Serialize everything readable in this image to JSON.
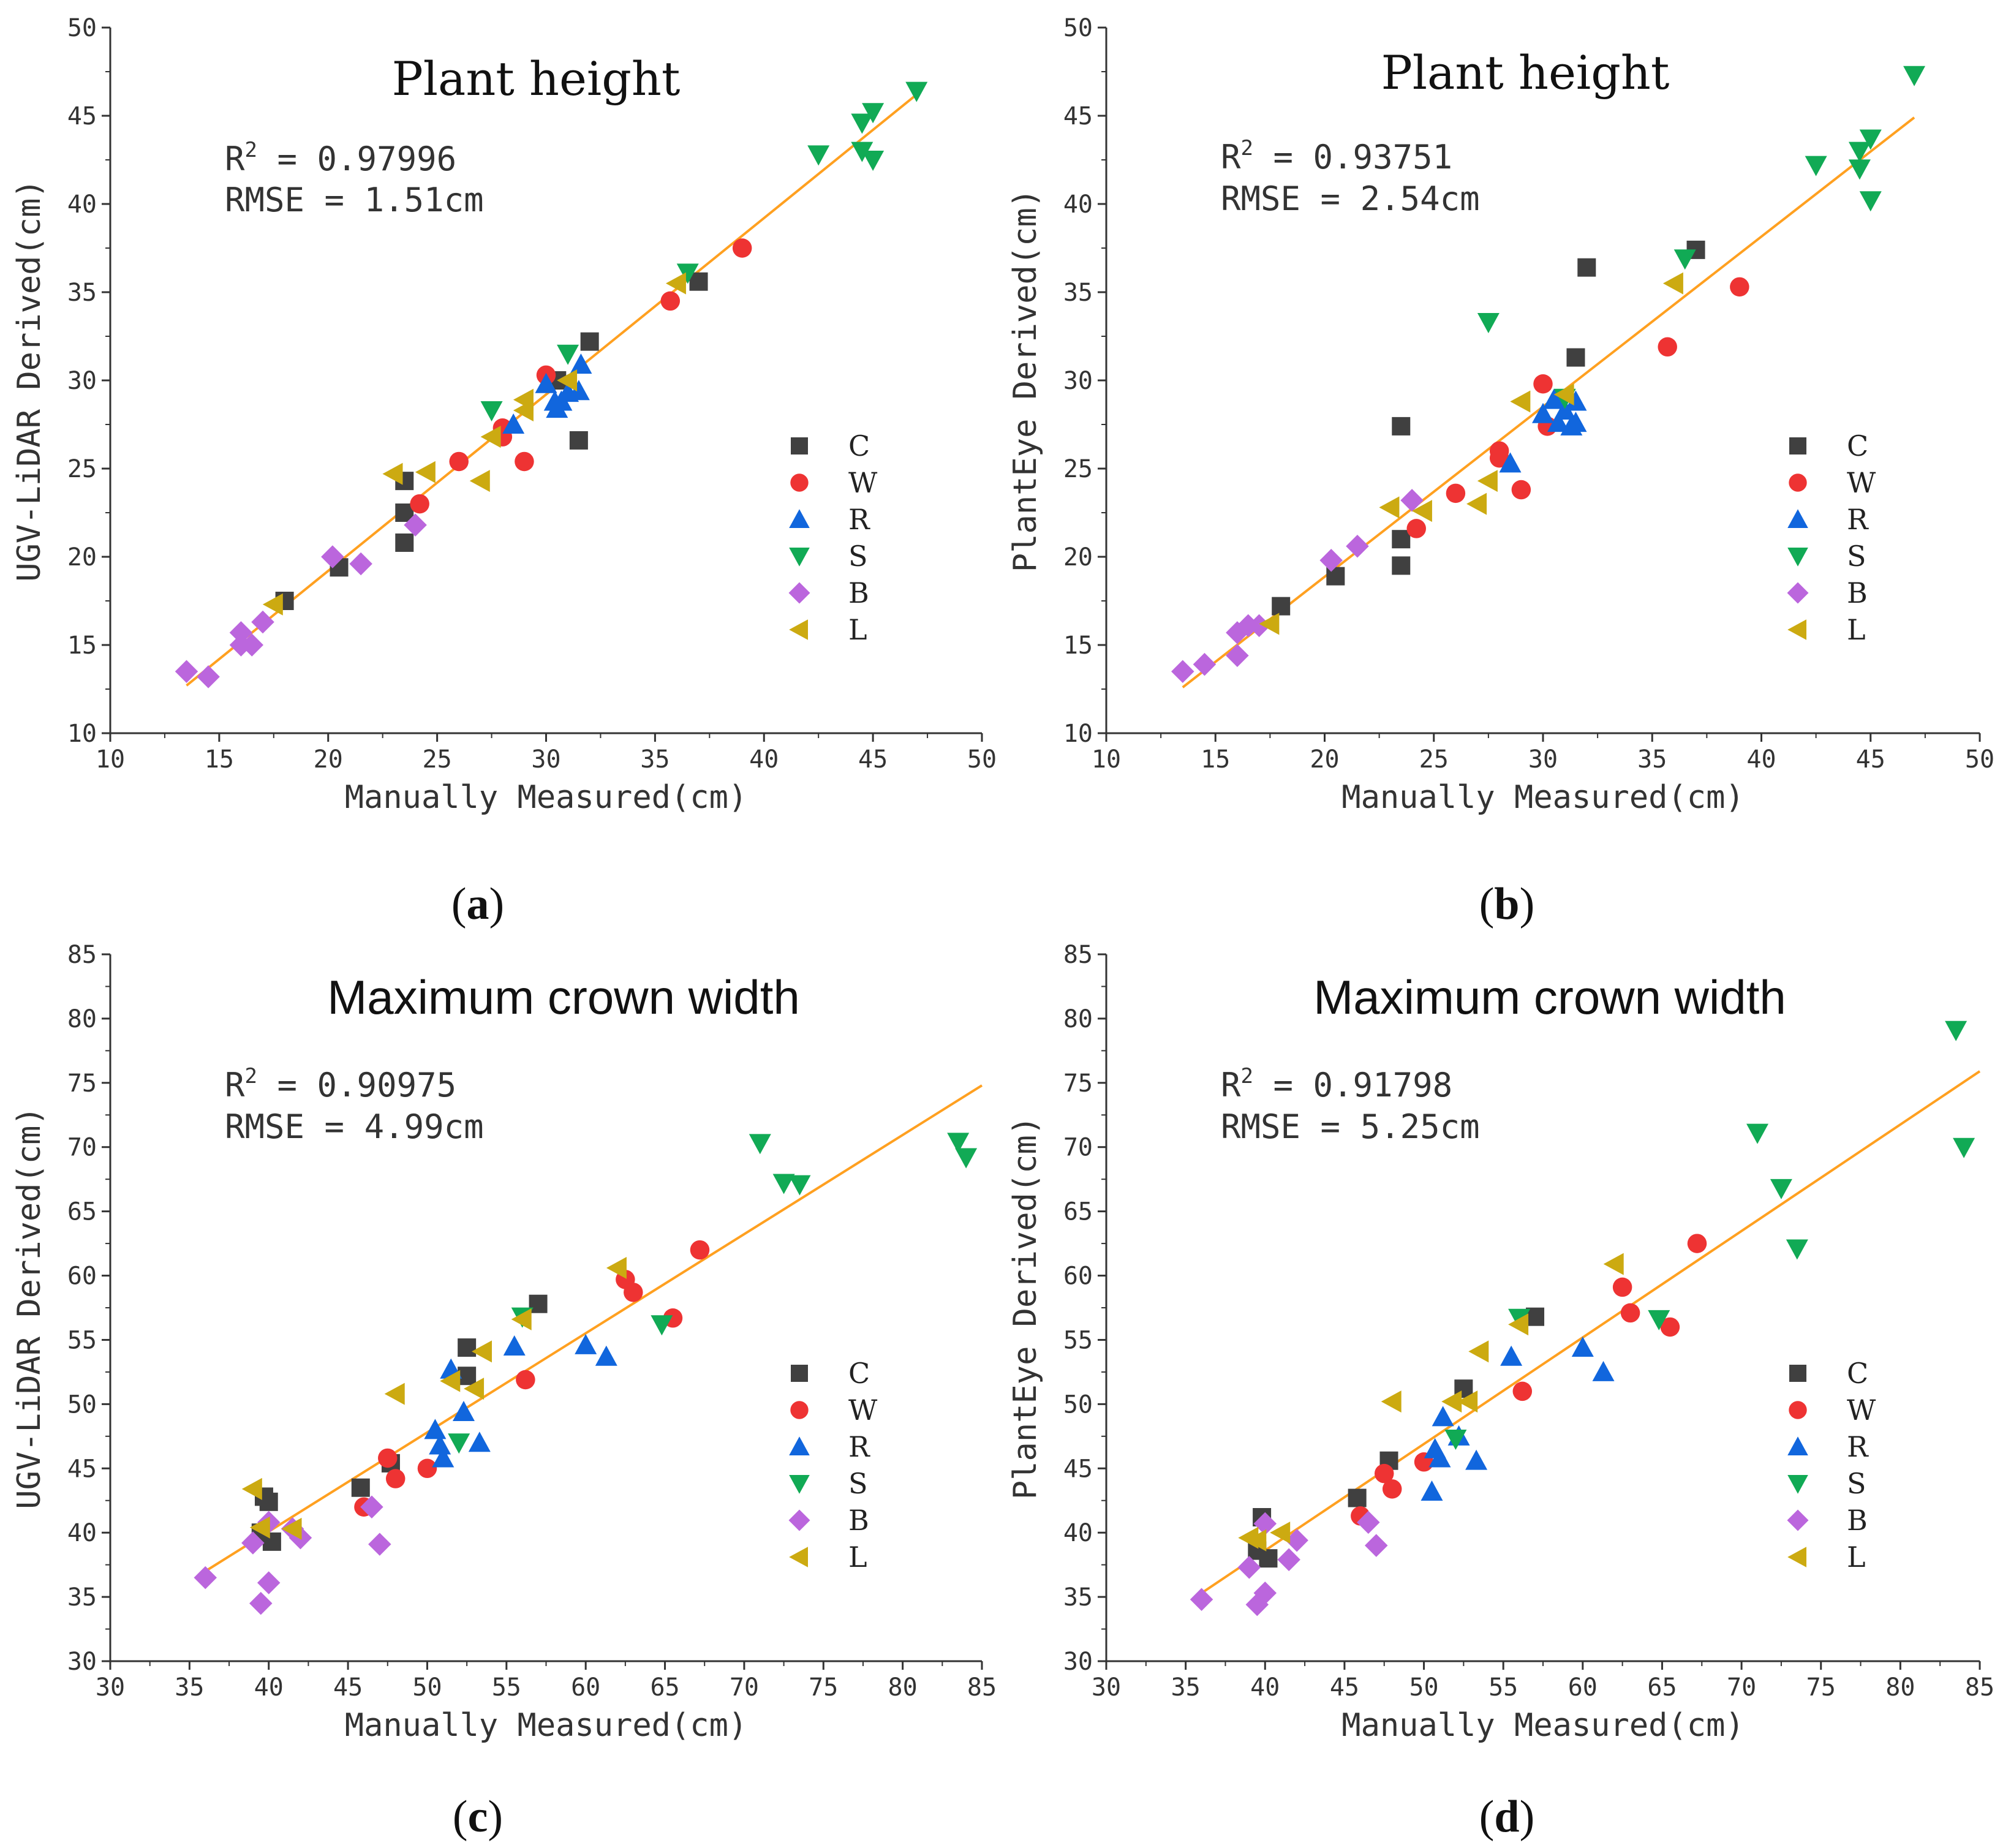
{
  "colors": {
    "C": "#404040",
    "W": "#ee3333",
    "R": "#1166dd",
    "S": "#11aa55",
    "B": "#bb66dd",
    "L": "#ccaa11",
    "fit": "#ffa020",
    "axis": "#333333"
  },
  "chart_data": [
    {
      "type": "scatter",
      "panel": "(a)",
      "title": "Plant height",
      "xlabel": "Manually Measured(cm)",
      "ylabel": "UGV-LiDAR Derived(cm)",
      "xlim": [
        10,
        50
      ],
      "ylim": [
        10,
        50
      ],
      "ticks": [
        10,
        15,
        20,
        25,
        30,
        35,
        40,
        45,
        50
      ],
      "r2_label": "R",
      "r2_value": " = 0.97996",
      "rmse": "RMSE = 1.51cm",
      "fit_line": [
        [
          13.5,
          12.7
        ],
        [
          47.0,
          46.2
        ]
      ],
      "series": [
        {
          "name": "C",
          "marker": "square",
          "points": [
            [
              18,
              17.5
            ],
            [
              20.5,
              19.4
            ],
            [
              23.5,
              24.3
            ],
            [
              23.5,
              22.5
            ],
            [
              23.5,
              20.8
            ],
            [
              30.5,
              30.0
            ],
            [
              31.5,
              26.6
            ],
            [
              32,
              32.2
            ],
            [
              37,
              35.6
            ]
          ]
        },
        {
          "name": "W",
          "marker": "circle",
          "points": [
            [
              24.2,
              23.0
            ],
            [
              26,
              25.4
            ],
            [
              28,
              27.3
            ],
            [
              28,
              26.8
            ],
            [
              29,
              25.4
            ],
            [
              30,
              30.3
            ],
            [
              35.7,
              34.5
            ],
            [
              39,
              37.5
            ]
          ]
        },
        {
          "name": "R",
          "marker": "triangle-up",
          "points": [
            [
              28.5,
              27.5
            ],
            [
              30,
              29.8
            ],
            [
              30.5,
              28.4
            ],
            [
              30.7,
              28.8
            ],
            [
              31.0,
              29.3
            ],
            [
              31.5,
              29.4
            ],
            [
              31.6,
              30.9
            ],
            [
              30.4,
              28.8
            ]
          ]
        },
        {
          "name": "S",
          "marker": "triangle-down",
          "points": [
            [
              27.5,
              28.3
            ],
            [
              31,
              31.5
            ],
            [
              36.5,
              36.1
            ],
            [
              42.5,
              42.8
            ],
            [
              44.5,
              44.6
            ],
            [
              44.5,
              43.0
            ],
            [
              45,
              45.2
            ],
            [
              45,
              42.5
            ],
            [
              47,
              46.4
            ]
          ]
        },
        {
          "name": "B",
          "marker": "diamond",
          "points": [
            [
              13.5,
              13.5
            ],
            [
              14.5,
              13.2
            ],
            [
              16,
              15.7
            ],
            [
              16,
              15.0
            ],
            [
              16.5,
              15.0
            ],
            [
              17,
              16.3
            ],
            [
              20.2,
              20.0
            ],
            [
              21.5,
              19.6
            ],
            [
              24,
              21.8
            ]
          ]
        },
        {
          "name": "L",
          "marker": "triangle-left",
          "points": [
            [
              17.5,
              17.3
            ],
            [
              23,
              24.7
            ],
            [
              24.5,
              24.8
            ],
            [
              27,
              24.3
            ],
            [
              27.5,
              26.8
            ],
            [
              29,
              28.9
            ],
            [
              29,
              28.3
            ],
            [
              31,
              30.0
            ],
            [
              36,
              35.5
            ]
          ]
        }
      ]
    },
    {
      "type": "scatter",
      "panel": "(b)",
      "title": "Plant height",
      "xlabel": "Manually Measured(cm)",
      "ylabel": "PlantEye Derived(cm)",
      "xlim": [
        10,
        50
      ],
      "ylim": [
        10,
        50
      ],
      "ticks": [
        10,
        15,
        20,
        25,
        30,
        35,
        40,
        45,
        50
      ],
      "r2_label": "R",
      "r2_value": " = 0.93751",
      "rmse": "RMSE = 2.54cm",
      "fit_line": [
        [
          13.5,
          12.6
        ],
        [
          47.0,
          44.9
        ]
      ],
      "series": [
        {
          "name": "C",
          "marker": "square",
          "points": [
            [
              18,
              17.2
            ],
            [
              20.5,
              18.9
            ],
            [
              23.5,
              27.4
            ],
            [
              23.5,
              21.0
            ],
            [
              23.5,
              19.5
            ],
            [
              31.5,
              31.3
            ],
            [
              32,
              36.4
            ],
            [
              37,
              37.4
            ]
          ]
        },
        {
          "name": "W",
          "marker": "circle",
          "points": [
            [
              24.2,
              21.6
            ],
            [
              26,
              23.6
            ],
            [
              28,
              26.0
            ],
            [
              28,
              25.6
            ],
            [
              29,
              23.8
            ],
            [
              30,
              29.8
            ],
            [
              30.2,
              27.4
            ],
            [
              35.7,
              31.9
            ],
            [
              39,
              35.3
            ]
          ]
        },
        {
          "name": "R",
          "marker": "triangle-up",
          "points": [
            [
              28.5,
              25.3
            ],
            [
              30,
              28.1
            ],
            [
              30.5,
              28.9
            ],
            [
              30.7,
              27.6
            ],
            [
              31.0,
              28.3
            ],
            [
              31.3,
              27.4
            ],
            [
              31.5,
              28.8
            ],
            [
              31.5,
              27.6
            ]
          ]
        },
        {
          "name": "S",
          "marker": "triangle-down",
          "points": [
            [
              27.5,
              33.3
            ],
            [
              31,
              29.0
            ],
            [
              36.5,
              36.9
            ],
            [
              42.5,
              42.2
            ],
            [
              44.5,
              43.0
            ],
            [
              44.5,
              42.0
            ],
            [
              45,
              43.7
            ],
            [
              45,
              40.2
            ],
            [
              47,
              47.3
            ]
          ]
        },
        {
          "name": "B",
          "marker": "diamond",
          "points": [
            [
              13.5,
              13.5
            ],
            [
              14.5,
              13.9
            ],
            [
              16,
              15.7
            ],
            [
              16,
              14.4
            ],
            [
              16.5,
              16.1
            ],
            [
              17,
              16.1
            ],
            [
              20.3,
              19.8
            ],
            [
              21.5,
              20.6
            ],
            [
              24,
              23.2
            ]
          ]
        },
        {
          "name": "L",
          "marker": "triangle-left",
          "points": [
            [
              17.5,
              16.2
            ],
            [
              23,
              22.8
            ],
            [
              24.5,
              22.6
            ],
            [
              27,
              23.0
            ],
            [
              27.5,
              24.3
            ],
            [
              29,
              28.8
            ],
            [
              31,
              29.2
            ],
            [
              36,
              35.5
            ]
          ]
        }
      ]
    },
    {
      "type": "scatter",
      "panel": "(c)",
      "title": "Maximum crown width",
      "xlabel": "Manually Measured(cm)",
      "ylabel": "UGV-LiDAR Derived(cm)",
      "xlim": [
        30,
        85
      ],
      "ylim": [
        30,
        85
      ],
      "ticks": [
        30,
        35,
        40,
        45,
        50,
        55,
        60,
        65,
        70,
        75,
        80,
        85
      ],
      "r2_label": "R",
      "r2_value": " = 0.90975",
      "rmse": "RMSE = 4.99cm",
      "fit_line": [
        [
          36.0,
          37.0
        ],
        [
          85.0,
          74.8
        ]
      ],
      "series": [
        {
          "name": "C",
          "marker": "square",
          "points": [
            [
              39.5,
              40.0
            ],
            [
              39.7,
              42.8
            ],
            [
              40,
              42.4
            ],
            [
              40.2,
              39.3
            ],
            [
              45.8,
              43.5
            ],
            [
              47.7,
              45.4
            ],
            [
              52.5,
              54.4
            ],
            [
              52.5,
              52.2
            ],
            [
              57,
              57.8
            ]
          ]
        },
        {
          "name": "W",
          "marker": "circle",
          "points": [
            [
              46,
              42.0
            ],
            [
              47.5,
              45.8
            ],
            [
              48,
              44.2
            ],
            [
              50,
              45.0
            ],
            [
              56.2,
              51.9
            ],
            [
              62.5,
              59.7
            ],
            [
              63,
              58.7
            ],
            [
              65.5,
              56.7
            ],
            [
              67.2,
              62.0
            ]
          ]
        },
        {
          "name": "R",
          "marker": "triangle-up",
          "points": [
            [
              50.5,
              48.0
            ],
            [
              50.8,
              46.8
            ],
            [
              51,
              45.8
            ],
            [
              51.5,
              52.7
            ],
            [
              52.3,
              49.4
            ],
            [
              53.3,
              47.0
            ],
            [
              55.5,
              54.5
            ],
            [
              60,
              54.6
            ],
            [
              61.3,
              53.7
            ]
          ]
        },
        {
          "name": "S",
          "marker": "triangle-down",
          "points": [
            [
              52,
              47.0
            ],
            [
              56,
              56.8
            ],
            [
              64.8,
              56.2
            ],
            [
              71,
              70.3
            ],
            [
              72.5,
              67.2
            ],
            [
              73.5,
              67.1
            ],
            [
              83.5,
              70.4
            ],
            [
              84,
              69.2
            ]
          ]
        },
        {
          "name": "B",
          "marker": "diamond",
          "points": [
            [
              36,
              36.5
            ],
            [
              39,
              39.2
            ],
            [
              39.5,
              34.5
            ],
            [
              40,
              36.1
            ],
            [
              40,
              40.8
            ],
            [
              41.5,
              40.3
            ],
            [
              42,
              39.6
            ],
            [
              46.5,
              42.0
            ],
            [
              47,
              39.1
            ]
          ]
        },
        {
          "name": "L",
          "marker": "triangle-left",
          "points": [
            [
              39,
              43.4
            ],
            [
              39.5,
              40.4
            ],
            [
              41.5,
              40.3
            ],
            [
              48,
              50.8
            ],
            [
              51.5,
              51.8
            ],
            [
              53,
              51.2
            ],
            [
              53.5,
              54.1
            ],
            [
              56,
              56.6
            ],
            [
              62,
              60.6
            ]
          ]
        }
      ]
    },
    {
      "type": "scatter",
      "panel": "(d)",
      "title": "Maximum crown width",
      "xlabel": "Manually Measured(cm)",
      "ylabel": "PlantEye Derived(cm)",
      "xlim": [
        30,
        85
      ],
      "ylim": [
        30,
        85
      ],
      "ticks": [
        30,
        35,
        40,
        45,
        50,
        55,
        60,
        65,
        70,
        75,
        80,
        85
      ],
      "r2_label": "R",
      "r2_value": " = 0.91798",
      "rmse": "RMSE = 5.25cm",
      "fit_line": [
        [
          36.0,
          35.3
        ],
        [
          85.0,
          75.9
        ]
      ],
      "series": [
        {
          "name": "C",
          "marker": "square",
          "points": [
            [
              39.5,
              38.6
            ],
            [
              39.8,
              41.2
            ],
            [
              40.2,
              38.0
            ],
            [
              45.8,
              42.7
            ],
            [
              47.8,
              45.6
            ],
            [
              52.5,
              51.2
            ],
            [
              57,
              56.8
            ]
          ]
        },
        {
          "name": "W",
          "marker": "circle",
          "points": [
            [
              46,
              41.3
            ],
            [
              47.5,
              44.6
            ],
            [
              48,
              43.4
            ],
            [
              50,
              45.5
            ],
            [
              56.2,
              51.0
            ],
            [
              62.5,
              59.1
            ],
            [
              63,
              57.1
            ],
            [
              65.5,
              56.0
            ],
            [
              67.2,
              62.5
            ]
          ]
        },
        {
          "name": "R",
          "marker": "triangle-up",
          "points": [
            [
              50.5,
              43.2
            ],
            [
              50.7,
              46.5
            ],
            [
              51,
              45.8
            ],
            [
              51.2,
              49.0
            ],
            [
              52.2,
              47.5
            ],
            [
              53.3,
              45.6
            ],
            [
              55.5,
              53.7
            ],
            [
              60,
              54.4
            ],
            [
              61.3,
              52.5
            ]
          ]
        },
        {
          "name": "S",
          "marker": "triangle-down",
          "points": [
            [
              52,
              47.3
            ],
            [
              56,
              56.7
            ],
            [
              64.8,
              56.6
            ],
            [
              71,
              71.1
            ],
            [
              72.5,
              66.8
            ],
            [
              73.5,
              62.1
            ],
            [
              83.5,
              79.1
            ],
            [
              84,
              70.0
            ]
          ]
        },
        {
          "name": "B",
          "marker": "diamond",
          "points": [
            [
              36,
              34.8
            ],
            [
              39,
              37.3
            ],
            [
              39.5,
              34.4
            ],
            [
              40,
              35.3
            ],
            [
              40,
              40.7
            ],
            [
              41.5,
              37.9
            ],
            [
              42,
              39.4
            ],
            [
              46.5,
              40.8
            ],
            [
              47,
              39.0
            ]
          ]
        },
        {
          "name": "L",
          "marker": "triangle-left",
          "points": [
            [
              39,
              39.6
            ],
            [
              39.5,
              39.4
            ],
            [
              41,
              40.0
            ],
            [
              48,
              50.2
            ],
            [
              51.8,
              50.2
            ],
            [
              52.8,
              50.2
            ],
            [
              53.5,
              54.1
            ],
            [
              56,
              56.2
            ],
            [
              62,
              60.9
            ]
          ]
        }
      ]
    }
  ],
  "legend": [
    "C",
    "W",
    "R",
    "S",
    "B",
    "L"
  ]
}
